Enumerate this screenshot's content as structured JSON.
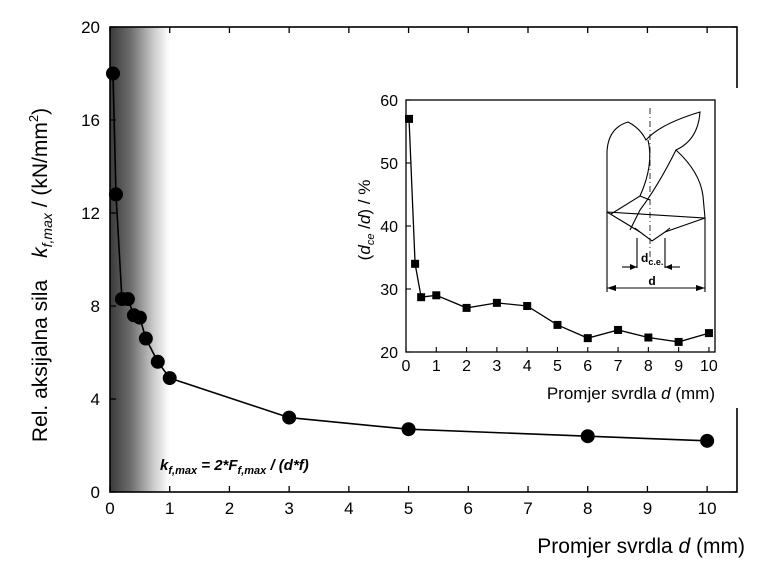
{
  "chart_data": [
    {
      "type": "line",
      "ylabel_pre": "Rel. aksijalna sila",
      "ylabel_k": "k",
      "ylabel_sub": "f,max",
      "ylabel_unit": " / (kN/mm",
      "ylabel_sup": "2",
      "ylabel_close": ")",
      "xlabel": "Promjer svrdla ",
      "xlabel_var": "d",
      "xlabel_unit": " (mm)",
      "annotation": {
        "k": "k",
        "k_sub": "f,max",
        "mid": " = 2*F",
        "f_sub": "f,max",
        "end": " / (d*f)"
      },
      "xlim": [
        0,
        10.5
      ],
      "ylim": [
        0,
        20
      ],
      "xticks": [
        0,
        1,
        2,
        3,
        4,
        5,
        6,
        7,
        8,
        9,
        10
      ],
      "yticks": [
        0,
        4,
        8,
        12,
        16,
        20
      ],
      "series": [
        {
          "marker": "circle",
          "x": [
            0.05,
            0.1,
            0.2,
            0.3,
            0.4,
            0.5,
            0.6,
            0.8,
            1,
            3,
            5,
            8,
            10
          ],
          "y": [
            18.0,
            12.8,
            8.3,
            8.3,
            7.6,
            7.5,
            6.6,
            5.6,
            4.9,
            3.2,
            2.7,
            2.4,
            2.2
          ]
        }
      ],
      "gradient_band": [
        0,
        1
      ]
    },
    {
      "type": "line",
      "ylabel_open": "(",
      "ylabel_d": "d",
      "ylabel_sub": "ce",
      "ylabel_mid": " /",
      "ylabel_d2": "d",
      "ylabel_end": ") / %",
      "xlabel": "Promjer svrdla ",
      "xlabel_var": "d",
      "xlabel_unit": " (mm)",
      "xlim": [
        0,
        10.2
      ],
      "ylim": [
        20,
        60
      ],
      "xticks": [
        0,
        1,
        2,
        3,
        4,
        5,
        6,
        7,
        8,
        9,
        10
      ],
      "yticks": [
        20,
        30,
        40,
        50,
        60
      ],
      "series": [
        {
          "marker": "square",
          "x": [
            0.1,
            0.3,
            0.5,
            1,
            2,
            3,
            4,
            5,
            6,
            7,
            8,
            9,
            10
          ],
          "y": [
            57,
            34,
            28.7,
            29,
            27,
            27.8,
            27.3,
            24.3,
            22.2,
            23.5,
            22.3,
            21.6,
            23
          ]
        }
      ],
      "drill_labels": {
        "dce": "d",
        "dce_sub": "c.e.",
        "d": "d"
      }
    }
  ]
}
